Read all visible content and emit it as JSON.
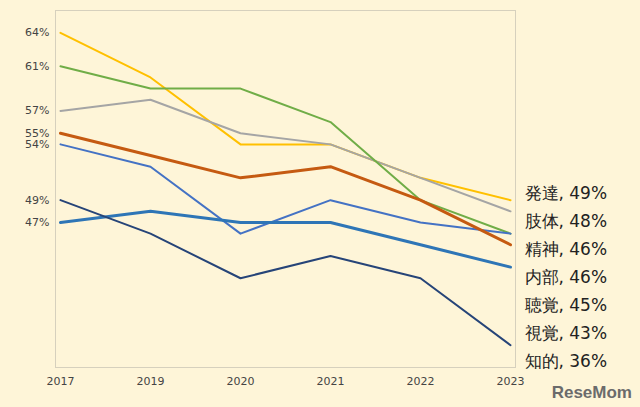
{
  "chart_data": {
    "type": "line",
    "categories": [
      "2017",
      "2019",
      "2020",
      "2021",
      "2022",
      "2023"
    ],
    "series": [
      {
        "name": "発達",
        "color": "#FFC000",
        "values": [
          64,
          60,
          54,
          54,
          51,
          49
        ],
        "value_labels": [
          null,
          null,
          null,
          null,
          null,
          "発達, 49%"
        ]
      },
      {
        "name": "肢体",
        "color": "#A5A5A5",
        "values": [
          57,
          58,
          55,
          54,
          51,
          48
        ],
        "value_labels": [
          null,
          null,
          null,
          null,
          null,
          "肢体, 48%"
        ]
      },
      {
        "name": "精神",
        "color": "#70AD47",
        "values": [
          61,
          59,
          59,
          56,
          49,
          46
        ],
        "value_labels": [
          null,
          null,
          null,
          null,
          null,
          "精神, 46%"
        ]
      },
      {
        "name": "内部",
        "color": "#4472C4",
        "values": [
          54,
          52,
          46,
          49,
          47,
          46
        ],
        "value_labels": [
          null,
          null,
          null,
          null,
          null,
          "内部, 46%"
        ]
      },
      {
        "name": "聴覚",
        "color": "#C55A11",
        "values": [
          55,
          53,
          51,
          52,
          49,
          45
        ],
        "value_labels": [
          null,
          null,
          null,
          null,
          null,
          "聴覚, 45%"
        ]
      },
      {
        "name": "視覚",
        "color": "#2E75B6",
        "values": [
          47,
          48,
          47,
          47,
          45,
          43
        ],
        "value_labels": [
          null,
          null,
          null,
          null,
          null,
          "視覚, 43%"
        ]
      },
      {
        "name": "知的",
        "color": "#264478",
        "values": [
          49,
          46,
          42,
          44,
          42,
          36
        ],
        "value_labels": [
          null,
          null,
          null,
          null,
          null,
          "知的, 36%"
        ]
      }
    ],
    "ylim": [
      34,
      66
    ],
    "yticks": [
      {
        "value": 64,
        "label": "64%"
      },
      {
        "value": 61,
        "label": "61%"
      },
      {
        "value": 57,
        "label": "57%"
      },
      {
        "value": 55,
        "label": "55%"
      },
      {
        "value": 54,
        "label": "54%"
      },
      {
        "value": 49,
        "label": "49%"
      },
      {
        "value": 47,
        "label": "47%"
      }
    ],
    "grid": false,
    "annotations": [
      {
        "text": "ReseMom"
      }
    ]
  }
}
